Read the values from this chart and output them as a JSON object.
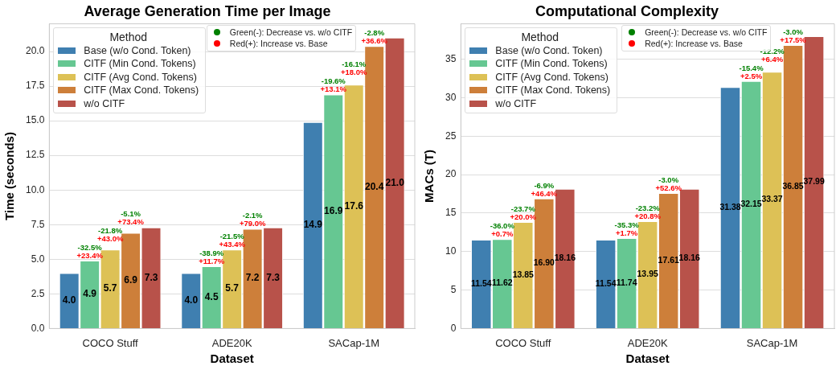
{
  "chart_data": [
    {
      "type": "bar",
      "title": "Average Generation Time per Image",
      "xlabel": "Dataset",
      "ylabel": "Time (seconds)",
      "categories": [
        "COCO Stuff",
        "ADE20K",
        "SACap-1M"
      ],
      "series": [
        {
          "name": "Base (w/o Cond. Token)",
          "color": "#3f7fb0",
          "values": [
            4.0,
            4.0,
            14.9
          ],
          "value_labels": [
            "4.0",
            "4.0",
            "14.9"
          ]
        },
        {
          "name": "CITF (Min Cond. Tokens)",
          "color": "#66c792",
          "values": [
            4.9,
            4.5,
            16.9
          ],
          "value_labels": [
            "4.9",
            "4.5",
            "16.9"
          ]
        },
        {
          "name": "CITF (Avg Cond. Tokens)",
          "color": "#ddc156",
          "values": [
            5.7,
            5.7,
            17.6
          ],
          "value_labels": [
            "5.7",
            "5.7",
            "17.6"
          ]
        },
        {
          "name": "CITF (Max Cond. Tokens)",
          "color": "#cd7f3a",
          "values": [
            6.9,
            7.2,
            20.4
          ],
          "value_labels": [
            "6.9",
            "7.2",
            "20.4"
          ]
        },
        {
          "name": "w/o CITF",
          "color": "#b8524a",
          "values": [
            7.3,
            7.3,
            21.0
          ],
          "value_labels": [
            "7.3",
            "7.3",
            "21.0"
          ]
        }
      ],
      "ylim": [
        0,
        22
      ],
      "yticks": [
        {
          "value": 0,
          "label": "0.0"
        },
        {
          "value": 2.5,
          "label": "2.5"
        },
        {
          "value": 5,
          "label": "5.0"
        },
        {
          "value": 7.5,
          "label": "7.5"
        },
        {
          "value": 10,
          "label": "10.0"
        },
        {
          "value": 12.5,
          "label": "12.5"
        },
        {
          "value": 15,
          "label": "15.0"
        },
        {
          "value": 17.5,
          "label": "17.5"
        },
        {
          "value": 20,
          "label": "20.0"
        }
      ],
      "grid": "y",
      "legend": "top left",
      "legend_title": "Method",
      "annotations": [
        "Green(-): Decrease vs. w/o CITF",
        "Red(+): Increase vs. Base",
        "-32.5%",
        "+23.4%",
        "-21.8%",
        "+43.0%",
        "-5.1%",
        "+73.4%",
        "-38.9%",
        "+11.7%",
        "-21.5%",
        "+43.4%",
        "-2.1%",
        "+79.0%",
        "-19.6%",
        "+13.1%",
        "-16.1%",
        "+18.0%",
        "-2.8%",
        "+36.6%"
      ]
    },
    {
      "type": "bar",
      "title": "Computational Complexity",
      "xlabel": "Dataset",
      "ylabel": "MACs (T)",
      "categories": [
        "COCO Stuff",
        "ADE20K",
        "SACap-1M"
      ],
      "series": [
        {
          "name": "Base (w/o Cond. Token)",
          "color": "#3f7fb0",
          "values": [
            11.54,
            11.54,
            31.38
          ],
          "value_labels": [
            "11.54",
            "11.54",
            "31.38"
          ]
        },
        {
          "name": "CITF (Min Cond. Tokens)",
          "color": "#66c792",
          "values": [
            11.62,
            11.74,
            32.15
          ],
          "value_labels": [
            "11.62",
            "11.74",
            "32.15"
          ]
        },
        {
          "name": "CITF (Avg Cond. Tokens)",
          "color": "#ddc156",
          "values": [
            13.85,
            13.95,
            33.37
          ],
          "value_labels": [
            "13.85",
            "13.95",
            "33.37"
          ]
        },
        {
          "name": "CITF (Max Cond. Tokens)",
          "color": "#cd7f3a",
          "values": [
            16.9,
            17.61,
            36.85
          ],
          "value_labels": [
            "16.90",
            "17.61",
            "36.85"
          ]
        },
        {
          "name": "w/o CITF",
          "color": "#b8524a",
          "values": [
            18.16,
            18.16,
            37.99
          ],
          "value_labels": [
            "18.16",
            "18.16",
            "37.99"
          ]
        }
      ],
      "ylim": [
        0,
        39.6
      ],
      "yticks": [
        0,
        5,
        10,
        15,
        20,
        25,
        30,
        35
      ],
      "grid": "y",
      "legend": "top left",
      "legend_title": "Method",
      "annotations": [
        "Green(-): Decrease vs. w/o CITF",
        "Red(+): Increase vs. Base",
        "-36.0%",
        "+0.7%",
        "-23.7%",
        "+20.0%",
        "-6.9%",
        "+46.4%",
        "-35.3%",
        "+1.7%",
        "-23.2%",
        "+20.8%",
        "-3.0%",
        "+52.6%",
        "-15.4%",
        "+2.5%",
        "-12.2%",
        "+6.4%",
        "-3.0%",
        "+17.5%"
      ]
    }
  ]
}
